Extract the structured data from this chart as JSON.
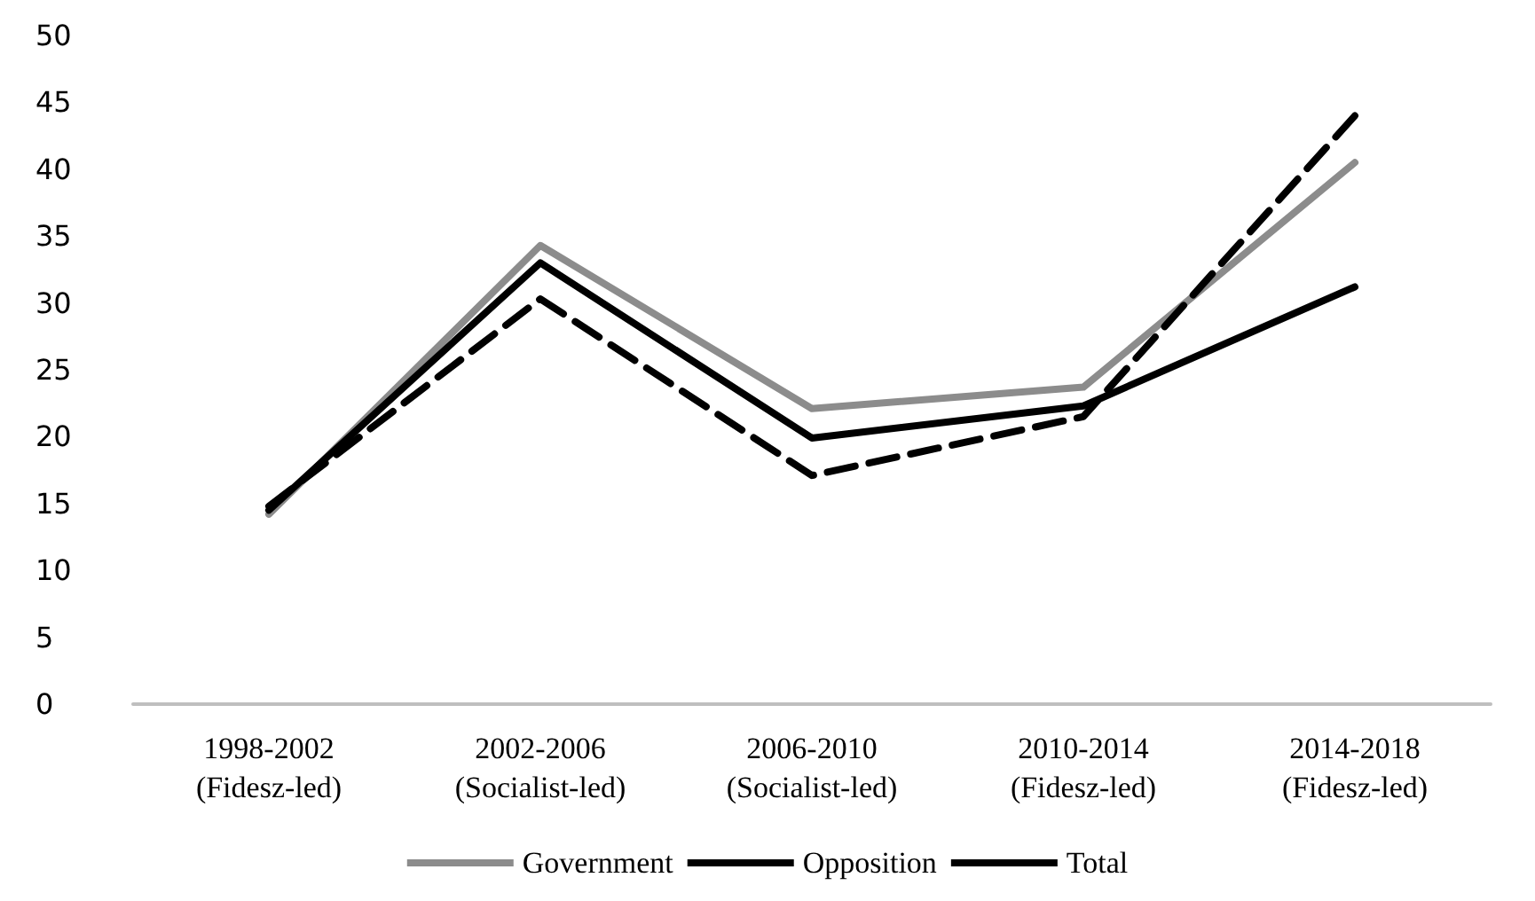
{
  "chart_data": {
    "type": "line",
    "categories": [
      "1998-2002\n(Fidesz-led)",
      "2002-2006\n(Socialist-led)",
      "2006-2010\n(Socialist-led)",
      "2010-2014\n(Fidesz-led)",
      "2014-2018\n(Fidesz-led)"
    ],
    "series": [
      {
        "name": "Government",
        "color": "#8c8c8c",
        "line_style": "solid",
        "values": [
          14.2,
          34.3,
          22.1,
          23.7,
          40.5
        ]
      },
      {
        "name": "Opposition",
        "color": "#000000",
        "line_style": "dashed",
        "values": [
          14.8,
          30.3,
          17.1,
          21.5,
          44.0
        ]
      },
      {
        "name": "Total",
        "color": "#000000",
        "line_style": "solid",
        "values": [
          14.5,
          33.0,
          19.9,
          22.3,
          31.2
        ]
      }
    ],
    "ylim": [
      0,
      50
    ],
    "yticks": [
      0,
      5,
      10,
      15,
      20,
      25,
      30,
      35,
      40,
      45,
      50
    ],
    "grid": false,
    "legend": "bottom",
    "marker": "none"
  }
}
